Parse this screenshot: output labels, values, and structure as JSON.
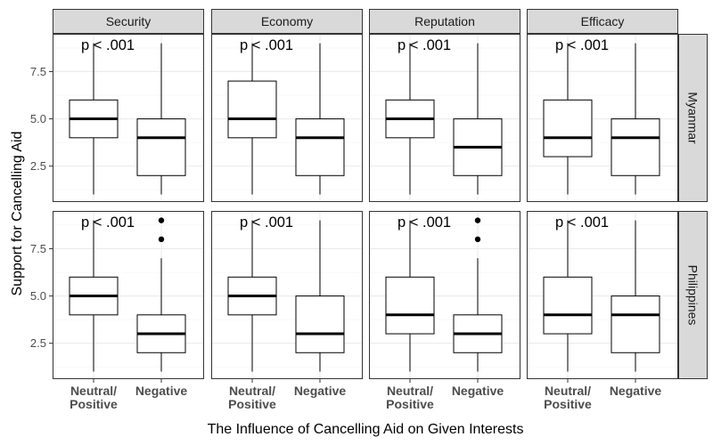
{
  "chart_data": {
    "type": "boxplot",
    "xlabel": "The Influence of Cancelling Aid on Given Interests",
    "ylabel": "Support for Cancelling Aid",
    "categories": [
      "Neutral/\nPositive",
      "Negative"
    ],
    "facet_columns": [
      "Security",
      "Economy",
      "Reputation",
      "Efficacy"
    ],
    "facet_rows": [
      "Myanmar",
      "Philippines"
    ],
    "y_ticks": [
      "2.5",
      "5.0",
      "7.5"
    ],
    "y_tick_values": [
      2.5,
      5.0,
      7.5
    ],
    "ylim": [
      0.6,
      9.5
    ],
    "grid": true,
    "annotation": "p < .001",
    "panels": [
      {
        "row": "Myanmar",
        "col": "Security",
        "p_label": "p < .001",
        "boxes": [
          {
            "category": "Neutral/Positive",
            "min": 1,
            "q1": 4,
            "median": 5,
            "q3": 6,
            "max": 9,
            "outliers": []
          },
          {
            "category": "Negative",
            "min": 1,
            "q1": 2,
            "median": 4,
            "q3": 5,
            "max": 9,
            "outliers": []
          }
        ]
      },
      {
        "row": "Myanmar",
        "col": "Economy",
        "p_label": "p < .001",
        "boxes": [
          {
            "category": "Neutral/Positive",
            "min": 1,
            "q1": 4,
            "median": 5,
            "q3": 7,
            "max": 9,
            "outliers": []
          },
          {
            "category": "Negative",
            "min": 1,
            "q1": 2,
            "median": 4,
            "q3": 5,
            "max": 9,
            "outliers": []
          }
        ]
      },
      {
        "row": "Myanmar",
        "col": "Reputation",
        "p_label": "p < .001",
        "boxes": [
          {
            "category": "Neutral/Positive",
            "min": 1,
            "q1": 4,
            "median": 5,
            "q3": 6,
            "max": 9,
            "outliers": []
          },
          {
            "category": "Negative",
            "min": 1,
            "q1": 2,
            "median": 3.5,
            "q3": 5,
            "max": 9,
            "outliers": []
          }
        ]
      },
      {
        "row": "Myanmar",
        "col": "Efficacy",
        "p_label": "p < .001",
        "boxes": [
          {
            "category": "Neutral/Positive",
            "min": 1,
            "q1": 3,
            "median": 4,
            "q3": 6,
            "max": 9,
            "outliers": []
          },
          {
            "category": "Negative",
            "min": 1,
            "q1": 2,
            "median": 4,
            "q3": 5,
            "max": 9,
            "outliers": []
          }
        ]
      },
      {
        "row": "Philippines",
        "col": "Security",
        "p_label": "p < .001",
        "boxes": [
          {
            "category": "Neutral/Positive",
            "min": 1,
            "q1": 4,
            "median": 5,
            "q3": 6,
            "max": 9,
            "outliers": []
          },
          {
            "category": "Negative",
            "min": 1,
            "q1": 2,
            "median": 3,
            "q3": 4,
            "max": 7,
            "outliers": [
              8,
              9
            ]
          }
        ]
      },
      {
        "row": "Philippines",
        "col": "Economy",
        "p_label": "p < .001",
        "boxes": [
          {
            "category": "Neutral/Positive",
            "min": 1,
            "q1": 4,
            "median": 5,
            "q3": 6,
            "max": 9,
            "outliers": []
          },
          {
            "category": "Negative",
            "min": 1,
            "q1": 2,
            "median": 3,
            "q3": 5,
            "max": 9,
            "outliers": []
          }
        ]
      },
      {
        "row": "Philippines",
        "col": "Reputation",
        "p_label": "p < .001",
        "boxes": [
          {
            "category": "Neutral/Positive",
            "min": 1,
            "q1": 3,
            "median": 4,
            "q3": 6,
            "max": 9,
            "outliers": []
          },
          {
            "category": "Negative",
            "min": 1,
            "q1": 2,
            "median": 3,
            "q3": 4,
            "max": 7,
            "outliers": [
              8,
              9
            ]
          }
        ]
      },
      {
        "row": "Philippines",
        "col": "Efficacy",
        "p_label": "p < .001",
        "boxes": [
          {
            "category": "Neutral/Positive",
            "min": 1,
            "q1": 3,
            "median": 4,
            "q3": 6,
            "max": 9,
            "outliers": []
          },
          {
            "category": "Negative",
            "min": 1,
            "q1": 2,
            "median": 4,
            "q3": 5,
            "max": 9,
            "outliers": []
          }
        ]
      }
    ],
    "colors": {
      "strip_fill": "#d9d9d9",
      "strip_border": "#333333",
      "panel_border": "#333333",
      "grid_major": "#ebebeb",
      "grid_minor": "#f5f5f5",
      "box_fill": "#ffffff",
      "box_line": "#000000",
      "tick_text": "#4d4d4d"
    }
  }
}
